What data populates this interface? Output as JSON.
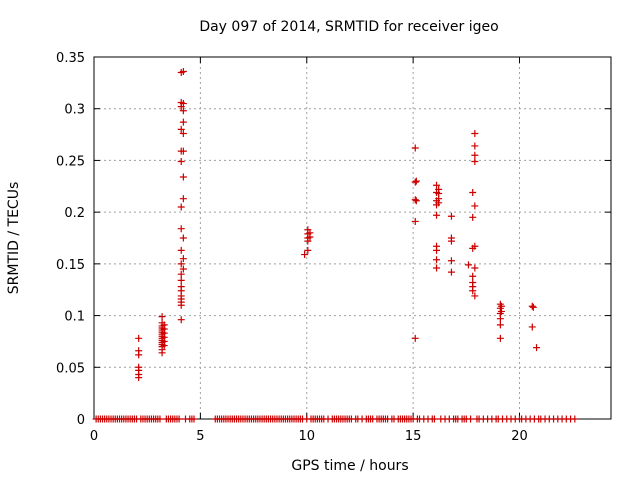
{
  "chart_data": {
    "type": "scatter",
    "title": "Day 097 of 2014, SRMTID for receiver igeo",
    "xlabel": "GPS time / hours",
    "ylabel": "SRMTID / TECUs",
    "xlim": [
      0,
      24.3
    ],
    "ylim": [
      0,
      0.35
    ],
    "grid": true,
    "x_ticks": [
      0,
      5,
      10,
      15,
      20
    ],
    "x_tick_labels": [
      "0",
      "5",
      "10",
      "15",
      "20"
    ],
    "y_ticks": [
      0,
      0.05,
      0.1,
      0.15,
      0.2,
      0.25,
      0.3,
      0.35
    ],
    "y_tick_labels": [
      "0",
      "0.05",
      "0.1",
      "0.15",
      "0.2",
      "0.25",
      "0.3",
      "0.35"
    ],
    "marker": "+",
    "marker_color": "#cc0000",
    "series": [
      {
        "name": "SRMTID",
        "points": [
          [
            2.1,
            0.078
          ],
          [
            2.1,
            0.066
          ],
          [
            2.1,
            0.062
          ],
          [
            2.1,
            0.05
          ],
          [
            2.1,
            0.047
          ],
          [
            2.1,
            0.043
          ],
          [
            2.1,
            0.04
          ],
          [
            3.2,
            0.099
          ],
          [
            3.2,
            0.093
          ],
          [
            3.2,
            0.09
          ],
          [
            3.2,
            0.088
          ],
          [
            3.2,
            0.086
          ],
          [
            3.2,
            0.084
          ],
          [
            3.2,
            0.082
          ],
          [
            3.2,
            0.08
          ],
          [
            3.2,
            0.078
          ],
          [
            3.2,
            0.076
          ],
          [
            3.2,
            0.074
          ],
          [
            3.2,
            0.072
          ],
          [
            3.2,
            0.07
          ],
          [
            3.2,
            0.067
          ],
          [
            3.2,
            0.064
          ],
          [
            3.3,
            0.091
          ],
          [
            3.3,
            0.087
          ],
          [
            3.3,
            0.083
          ],
          [
            3.3,
            0.079
          ],
          [
            3.3,
            0.075
          ],
          [
            3.3,
            0.071
          ],
          [
            4.1,
            0.335
          ],
          [
            4.1,
            0.306
          ],
          [
            4.1,
            0.302
          ],
          [
            4.1,
            0.28
          ],
          [
            4.1,
            0.259
          ],
          [
            4.1,
            0.249
          ],
          [
            4.1,
            0.205
          ],
          [
            4.1,
            0.184
          ],
          [
            4.1,
            0.163
          ],
          [
            4.1,
            0.15
          ],
          [
            4.1,
            0.14
          ],
          [
            4.1,
            0.134
          ],
          [
            4.1,
            0.128
          ],
          [
            4.1,
            0.124
          ],
          [
            4.1,
            0.119
          ],
          [
            4.1,
            0.116
          ],
          [
            4.1,
            0.113
          ],
          [
            4.1,
            0.11
          ],
          [
            4.1,
            0.096
          ],
          [
            4.2,
            0.336
          ],
          [
            4.2,
            0.305
          ],
          [
            4.2,
            0.298
          ],
          [
            4.2,
            0.287
          ],
          [
            4.2,
            0.276
          ],
          [
            4.2,
            0.259
          ],
          [
            4.2,
            0.234
          ],
          [
            4.2,
            0.213
          ],
          [
            4.2,
            0.175
          ],
          [
            4.2,
            0.155
          ],
          [
            4.2,
            0.145
          ],
          [
            9.9,
            0.159
          ],
          [
            10.05,
            0.183
          ],
          [
            10.05,
            0.179
          ],
          [
            10.05,
            0.175
          ],
          [
            10.05,
            0.172
          ],
          [
            10.05,
            0.163
          ],
          [
            10.15,
            0.18
          ],
          [
            10.15,
            0.176
          ],
          [
            15.1,
            0.262
          ],
          [
            15.1,
            0.229
          ],
          [
            15.1,
            0.212
          ],
          [
            15.1,
            0.191
          ],
          [
            15.1,
            0.078
          ],
          [
            15.15,
            0.23
          ],
          [
            15.15,
            0.211
          ],
          [
            16.1,
            0.226
          ],
          [
            16.1,
            0.219
          ],
          [
            16.1,
            0.211
          ],
          [
            16.1,
            0.207
          ],
          [
            16.1,
            0.197
          ],
          [
            16.1,
            0.167
          ],
          [
            16.1,
            0.163
          ],
          [
            16.1,
            0.154
          ],
          [
            16.1,
            0.146
          ],
          [
            16.2,
            0.222
          ],
          [
            16.2,
            0.218
          ],
          [
            16.2,
            0.213
          ],
          [
            16.2,
            0.209
          ],
          [
            16.8,
            0.196
          ],
          [
            16.8,
            0.175
          ],
          [
            16.8,
            0.172
          ],
          [
            16.8,
            0.153
          ],
          [
            16.8,
            0.142
          ],
          [
            17.6,
            0.149
          ],
          [
            17.8,
            0.219
          ],
          [
            17.8,
            0.195
          ],
          [
            17.8,
            0.165
          ],
          [
            17.8,
            0.138
          ],
          [
            17.8,
            0.132
          ],
          [
            17.8,
            0.128
          ],
          [
            17.8,
            0.124
          ],
          [
            17.9,
            0.276
          ],
          [
            17.9,
            0.264
          ],
          [
            17.9,
            0.255
          ],
          [
            17.9,
            0.249
          ],
          [
            17.9,
            0.206
          ],
          [
            17.9,
            0.167
          ],
          [
            17.9,
            0.146
          ],
          [
            17.9,
            0.119
          ],
          [
            19.1,
            0.111
          ],
          [
            19.1,
            0.107
          ],
          [
            19.1,
            0.102
          ],
          [
            19.1,
            0.097
          ],
          [
            19.1,
            0.091
          ],
          [
            19.1,
            0.078
          ],
          [
            19.15,
            0.109
          ],
          [
            19.15,
            0.104
          ],
          [
            20.6,
            0.109
          ],
          [
            20.6,
            0.089
          ],
          [
            20.65,
            0.108
          ],
          [
            20.8,
            0.069
          ]
        ],
        "zero_x": [
          0.1,
          0.2,
          0.3,
          0.4,
          0.5,
          0.6,
          0.7,
          0.8,
          0.9,
          1.0,
          1.1,
          1.2,
          1.3,
          1.4,
          1.5,
          1.6,
          1.7,
          1.8,
          1.9,
          2.0,
          2.2,
          2.3,
          2.4,
          2.5,
          2.6,
          2.7,
          2.8,
          2.9,
          3.0,
          3.1,
          3.4,
          3.5,
          3.6,
          3.7,
          3.8,
          3.9,
          4.0,
          4.3,
          4.5,
          4.6,
          4.7,
          5.7,
          5.8,
          5.9,
          6.0,
          6.1,
          6.2,
          6.3,
          6.4,
          6.5,
          6.6,
          6.7,
          6.8,
          6.9,
          7.0,
          7.1,
          7.2,
          7.3,
          7.4,
          7.5,
          7.6,
          7.7,
          7.8,
          7.9,
          8.0,
          8.1,
          8.2,
          8.3,
          8.4,
          8.5,
          8.6,
          8.7,
          8.8,
          8.9,
          9.0,
          9.1,
          9.2,
          9.3,
          9.4,
          9.5,
          9.6,
          9.7,
          9.8,
          10.0,
          10.2,
          10.3,
          10.4,
          10.5,
          10.6,
          10.7,
          10.8,
          11.0,
          11.2,
          11.3,
          11.4,
          11.5,
          11.6,
          11.7,
          11.8,
          11.9,
          12.0,
          12.1,
          12.3,
          12.4,
          12.6,
          12.8,
          12.9,
          13.0,
          13.1,
          13.3,
          13.4,
          13.5,
          13.6,
          13.7,
          13.8,
          14.0,
          14.1,
          14.3,
          14.4,
          14.5,
          14.6,
          14.7,
          14.8,
          14.9,
          15.0,
          15.2,
          15.3,
          15.5,
          15.7,
          15.9,
          16.0,
          16.3,
          16.5,
          16.7,
          16.9,
          17.0,
          17.1,
          17.3,
          17.4,
          17.5,
          17.7,
          18.0,
          18.1,
          18.3,
          18.5,
          18.7,
          18.9,
          19.0,
          19.2,
          19.4,
          19.6,
          19.8,
          20.0,
          20.1,
          20.3,
          20.5,
          20.7,
          20.9,
          21.0,
          21.2,
          21.4,
          21.6,
          21.8,
          22.0,
          22.2,
          22.4,
          22.6
        ]
      }
    ]
  }
}
